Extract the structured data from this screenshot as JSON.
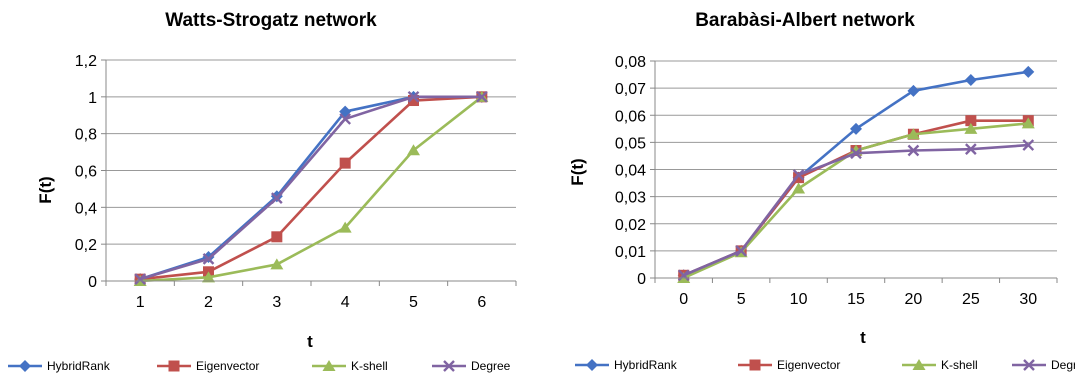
{
  "chart_data": [
    {
      "type": "line",
      "title": "Watts-Strogatz network",
      "xlabel": "t",
      "ylabel": "F(t)",
      "x": [
        1,
        2,
        3,
        4,
        5,
        6
      ],
      "x_tick_labels": [
        "1",
        "2",
        "3",
        "4",
        "5",
        "6"
      ],
      "ylim": [
        0,
        1.2
      ],
      "y_ticks": [
        0,
        0.2,
        0.4,
        0.6,
        0.8,
        1,
        1.2
      ],
      "y_tick_labels": [
        "0",
        "0,2",
        "0,4",
        "0,6",
        "0,8",
        "1",
        "1,2"
      ],
      "grid": "horizontal",
      "legend": "bottom",
      "series": [
        {
          "name": "HybridRank",
          "color": "#4472C4",
          "marker": "diamond",
          "values": [
            0.01,
            0.13,
            0.46,
            0.92,
            1.0,
            1.0
          ]
        },
        {
          "name": "Eigenvector",
          "color": "#C0504D",
          "marker": "square",
          "values": [
            0.01,
            0.05,
            0.24,
            0.64,
            0.98,
            1.0
          ]
        },
        {
          "name": "K-shell",
          "color": "#9BBB59",
          "marker": "triangle",
          "values": [
            0.0,
            0.02,
            0.09,
            0.29,
            0.71,
            1.0
          ]
        },
        {
          "name": "Degree",
          "color": "#8064A2",
          "marker": "x",
          "values": [
            0.01,
            0.12,
            0.45,
            0.88,
            1.0,
            1.0
          ]
        }
      ]
    },
    {
      "type": "line",
      "title": "Barabàsi-Albert network",
      "xlabel": "t",
      "ylabel": "F(t)",
      "x": [
        0,
        5,
        10,
        15,
        20,
        25,
        30
      ],
      "x_tick_labels": [
        "0",
        "5",
        "10",
        "15",
        "20",
        "25",
        "30"
      ],
      "ylim": [
        0,
        0.08
      ],
      "y_ticks": [
        0,
        0.01,
        0.02,
        0.03,
        0.04,
        0.05,
        0.06,
        0.07,
        0.08
      ],
      "y_tick_labels": [
        "0",
        "0,01",
        "0,02",
        "0,03",
        "0,04",
        "0,05",
        "0,06",
        "0,07",
        "0,08"
      ],
      "grid": "horizontal",
      "legend": "bottom",
      "series": [
        {
          "name": "HybridRank",
          "color": "#4472C4",
          "marker": "diamond",
          "values": [
            0.001,
            0.01,
            0.037,
            0.055,
            0.069,
            0.073,
            0.076
          ]
        },
        {
          "name": "Eigenvector",
          "color": "#C0504D",
          "marker": "square",
          "values": [
            0.001,
            0.01,
            0.037,
            0.047,
            0.053,
            0.058,
            0.058
          ]
        },
        {
          "name": "K-shell",
          "color": "#9BBB59",
          "marker": "triangle",
          "values": [
            0.0,
            0.0095,
            0.033,
            0.047,
            0.053,
            0.055,
            0.057
          ]
        },
        {
          "name": "Degree",
          "color": "#8064A2",
          "marker": "x",
          "values": [
            0.001,
            0.01,
            0.038,
            0.046,
            0.047,
            0.0475,
            0.049
          ]
        }
      ]
    }
  ]
}
